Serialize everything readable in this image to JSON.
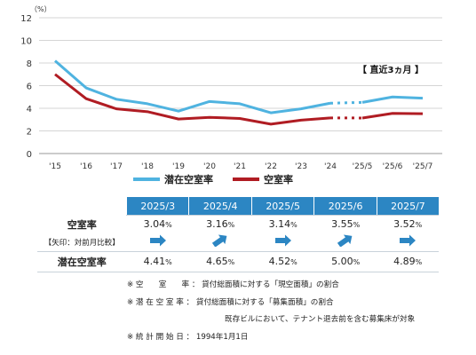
{
  "chart_data": {
    "type": "line",
    "unit": "（%）",
    "y_ticks": [
      "0",
      "2",
      "4",
      "6",
      "8",
      "10",
      "12"
    ],
    "ylim": [
      0,
      12
    ],
    "categories": [
      "'15",
      "'16",
      "'17",
      "'18",
      "'19",
      "'20",
      "'21",
      "'22",
      "'23",
      "'24",
      "'25/5",
      "'25/6",
      "'25/7"
    ],
    "annotation": "【 直近3ヵ月 】",
    "series": [
      {
        "name": "潜在空室率",
        "color": "#4fb3e0",
        "values": [
          8.2,
          5.8,
          4.8,
          4.4,
          3.75,
          4.6,
          4.4,
          3.6,
          3.95,
          4.45,
          4.52,
          5.0,
          4.89
        ]
      },
      {
        "name": "空室率",
        "color": "#b01c23",
        "values": [
          7.0,
          4.85,
          3.95,
          3.7,
          3.05,
          3.2,
          3.1,
          2.6,
          2.95,
          3.15,
          3.14,
          3.55,
          3.52
        ]
      }
    ]
  },
  "table": {
    "months": [
      "2025/3",
      "2025/4",
      "2025/5",
      "2025/6",
      "2025/7"
    ],
    "vacancy_label": "空室率",
    "arrow_label": "【矢印：対前月比較】",
    "potential_label": "潜在空室率",
    "vacancy": [
      "3.04",
      "3.16",
      "3.14",
      "3.55",
      "3.52"
    ],
    "potential": [
      "4.41",
      "4.65",
      "4.52",
      "5.00",
      "4.89"
    ],
    "pct": "%",
    "arrows": [
      "flat",
      "up",
      "flat",
      "up",
      "flat"
    ]
  },
  "notes": [
    "※ 空　　室　　率 ： 貸付総面積に対する「現空面積」の割合",
    "※ 潜 在 空 室 率 ： 貸付総面積に対する「募集面積」の割合",
    "既存ビルにおいて、テナント退去前を含む募集床が対象",
    "※ 統 計 開 始 日 ： 1994年1月1日"
  ],
  "colors": {
    "header": "#2c86c3",
    "arrow": "#2c86c3"
  }
}
